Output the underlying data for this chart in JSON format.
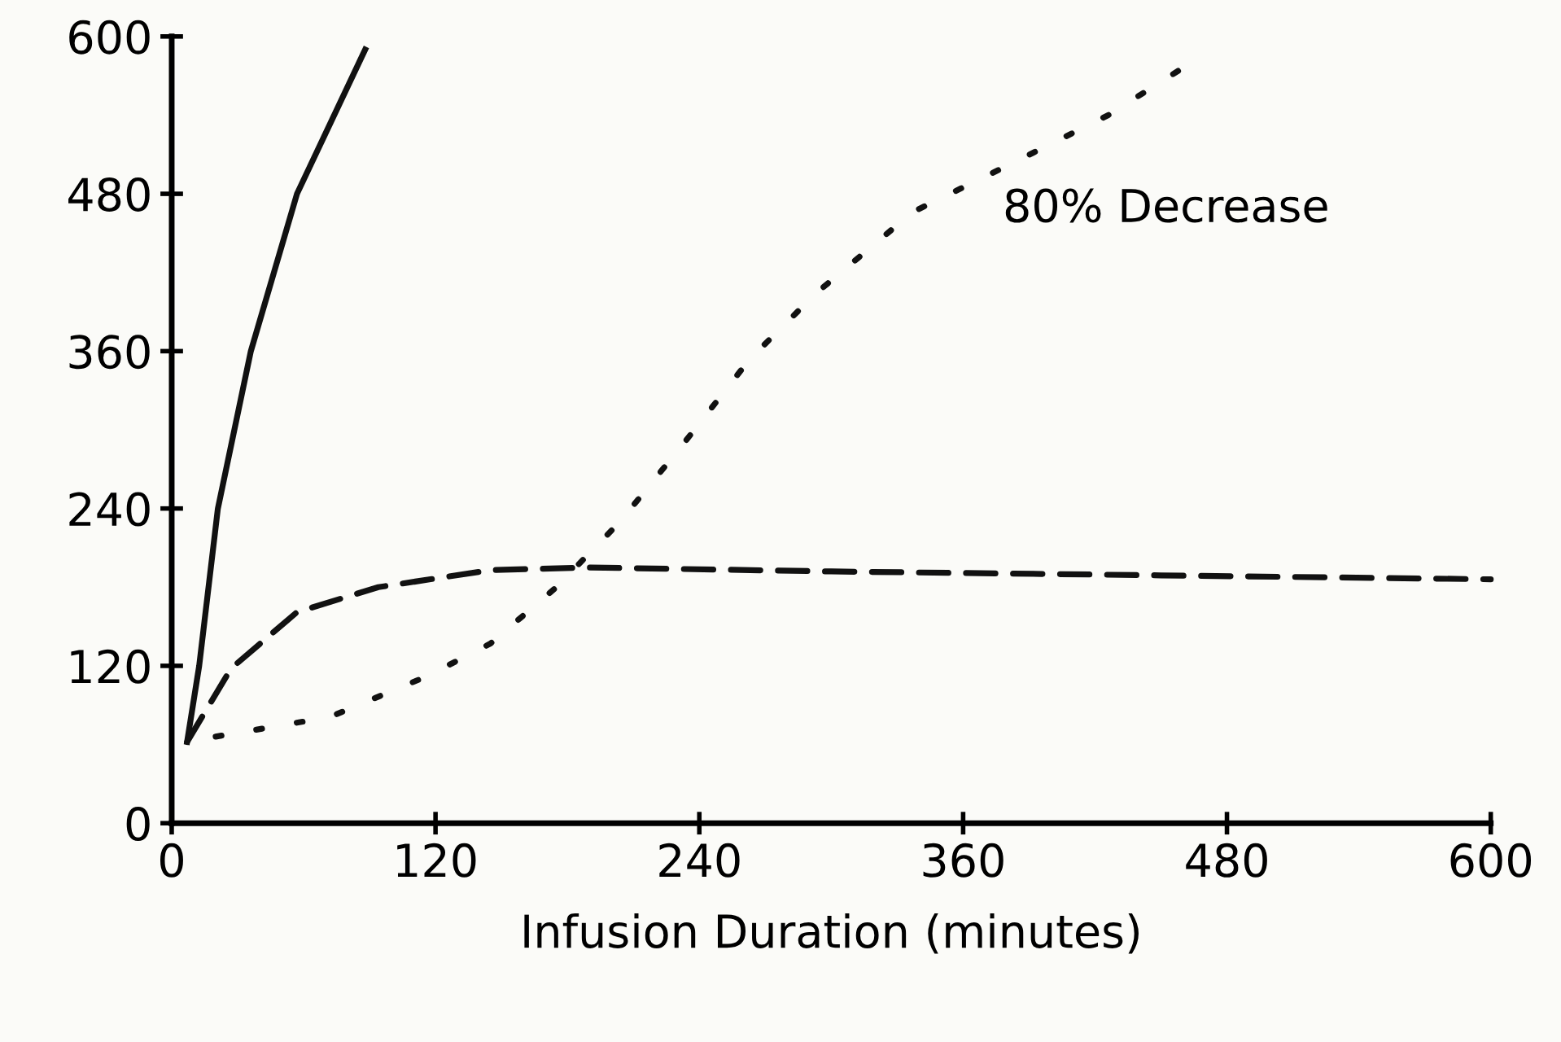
{
  "chart_data": {
    "type": "line",
    "xlabel": "Infusion Duration (minutes)",
    "xlim": [
      0,
      600
    ],
    "xticks": [
      0,
      120,
      240,
      360,
      480,
      600
    ],
    "ylim": [
      0,
      600
    ],
    "yticks": [
      0,
      120,
      240,
      360,
      480,
      600
    ],
    "grid": false,
    "legend": false,
    "marker": "none",
    "annotations": [
      "80% Decrease"
    ],
    "series": [
      {
        "color": "#111111",
        "line_style": "solid",
        "x": [
          7,
          12.5,
          21,
          36,
          57,
          88
        ],
        "values": [
          62,
          120,
          240,
          360,
          480,
          590
        ]
      },
      {
        "color": "#111111",
        "line_style": "dashed",
        "x": [
          7,
          27,
          57,
          94,
          145,
          190,
          300,
          450,
          600
        ],
        "values": [
          62,
          118,
          161,
          180,
          193,
          195,
          192,
          189,
          186
        ]
      },
      {
        "color": "#111111",
        "line_style": "dotted",
        "x": [
          20,
          72,
          116,
          145,
          175,
          204,
          234,
          263,
          293,
          337,
          382,
          426,
          459
        ],
        "values": [
          66,
          81,
          112,
          137,
          180,
          230,
          292,
          354,
          404,
          466,
          503,
          540,
          575
        ]
      }
    ]
  }
}
